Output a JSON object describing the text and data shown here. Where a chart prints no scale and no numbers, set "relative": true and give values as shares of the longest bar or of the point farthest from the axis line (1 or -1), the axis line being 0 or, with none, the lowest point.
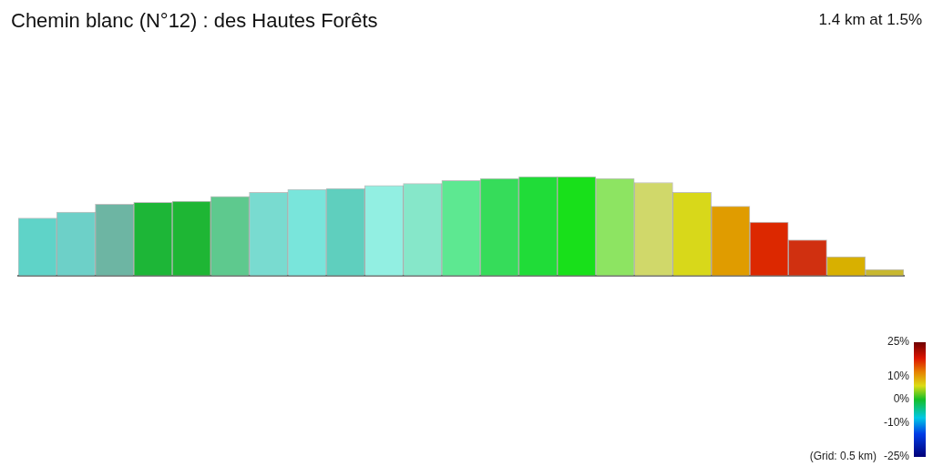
{
  "chart_data": {
    "type": "bar",
    "title": "Chemin blanc (N°12) : des Hautes Forêts",
    "subtitle": "1.4 km at 1.5%",
    "relative": true,
    "grid": false,
    "legend": false,
    "categories": [
      null,
      null,
      null,
      null,
      null,
      null,
      null,
      null,
      null,
      null,
      null,
      null,
      null,
      null,
      null,
      null,
      null,
      null,
      null,
      null,
      null,
      null,
      null
    ],
    "values": [
      0.58,
      0.64,
      0.72,
      0.74,
      0.75,
      0.8,
      0.84,
      0.87,
      0.88,
      0.91,
      0.93,
      0.96,
      0.98,
      1,
      1,
      0.98,
      0.94,
      0.84,
      0.7,
      0.54,
      0.36,
      0.19,
      0.06
    ],
    "colors": [
      "#5fd3c8",
      "#6dd0c8",
      "#6db5a3",
      "#1db637",
      "#1eb634",
      "#5ec98e",
      "#79dbd0",
      "#79e5db",
      "#5fcfbe",
      "#92efe2",
      "#86e7c9",
      "#5de891",
      "#36dc5a",
      "#20dc38",
      "#18e01a",
      "#8de462",
      "#d0d86a",
      "#d8d81a",
      "#e09c00",
      "#dc2800",
      "#d03010",
      "#d8b000",
      "#c8b830"
    ],
    "clim": [
      -25,
      25
    ],
    "cticks": [
      {
        "value": 25,
        "label": "25%"
      },
      {
        "value": 10,
        "label": "10%"
      },
      {
        "value": 0,
        "label": "0%"
      },
      {
        "value": -10,
        "label": "-10%"
      },
      {
        "value": -25,
        "label": "-25%"
      }
    ],
    "annotations": [
      "(Grid: 0.5 km)"
    ]
  }
}
